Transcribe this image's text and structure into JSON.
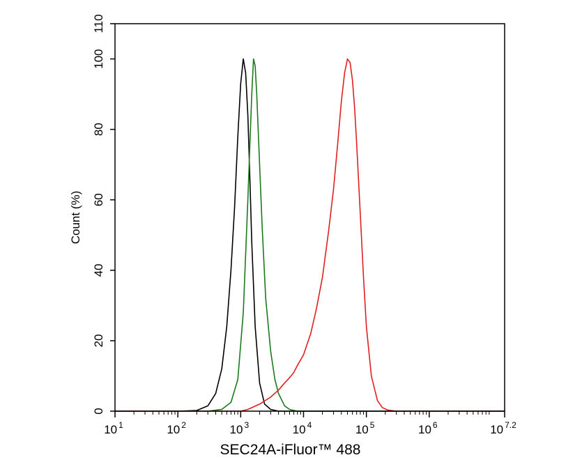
{
  "chart_data": {
    "type": "line",
    "title": "",
    "xlabel": "SEC24A-iFluor™ 488",
    "ylabel": "Count  (%)",
    "x_scale": "log10",
    "xlim": [
      10,
      15848932
    ],
    "ylim": [
      0,
      110
    ],
    "y_ticks": [
      0,
      20,
      40,
      60,
      80,
      100,
      110
    ],
    "x_ticks": [
      {
        "value": 10,
        "base": "10",
        "exp": "1"
      },
      {
        "value": 100,
        "base": "10",
        "exp": "2"
      },
      {
        "value": 1000,
        "base": "10",
        "exp": "3"
      },
      {
        "value": 10000,
        "base": "10",
        "exp": "4"
      },
      {
        "value": 100000,
        "base": "10",
        "exp": "5"
      },
      {
        "value": 1000000,
        "base": "10",
        "exp": "6"
      },
      {
        "value": 15848932,
        "base": "10",
        "exp": "7.2"
      }
    ],
    "grid": false,
    "legend": "none",
    "series": [
      {
        "color": "#000000",
        "x": [
          100,
          200,
          300,
          400,
          500,
          600,
          700,
          800,
          900,
          1000,
          1100,
          1200,
          1300,
          1400,
          1500,
          1700,
          2000,
          2400,
          3000,
          4000,
          6000,
          15848932,
          10
        ],
        "y": [
          0,
          0.2,
          1.5,
          5,
          12,
          24,
          40,
          58,
          78,
          93,
          100,
          96,
          84,
          66,
          48,
          24,
          8,
          2,
          0.5,
          0,
          0,
          0,
          0
        ]
      },
      {
        "color": "#1a7a1a",
        "x": [
          10,
          300,
          500,
          700,
          900,
          1100,
          1300,
          1500,
          1600,
          1700,
          1800,
          2000,
          2200,
          2500,
          3000,
          3500,
          4000,
          5000,
          6000,
          8000,
          15848932
        ],
        "y": [
          0,
          0,
          0.5,
          2.5,
          9,
          28,
          60,
          90,
          100,
          98,
          90,
          70,
          52,
          32,
          17,
          9,
          5,
          1.5,
          0.5,
          0,
          0
        ]
      },
      {
        "color": "#e02020",
        "x": [
          10,
          1000,
          1300,
          2000,
          3000,
          4000,
          5000,
          6000,
          7000,
          8000,
          10000,
          13000,
          16000,
          20000,
          25000,
          30000,
          35000,
          40000,
          45000,
          50000,
          55000,
          60000,
          65000,
          70000,
          80000,
          90000,
          100000,
          120000,
          150000,
          180000,
          220000,
          300000,
          15848932
        ],
        "y": [
          0,
          0,
          0.5,
          2,
          4,
          6,
          8,
          9.5,
          11,
          13,
          16,
          22,
          29,
          38,
          51,
          63,
          76,
          88,
          96,
          100,
          99,
          94,
          86,
          76,
          56,
          38,
          24,
          10,
          3,
          1,
          0.3,
          0,
          0
        ]
      }
    ]
  }
}
